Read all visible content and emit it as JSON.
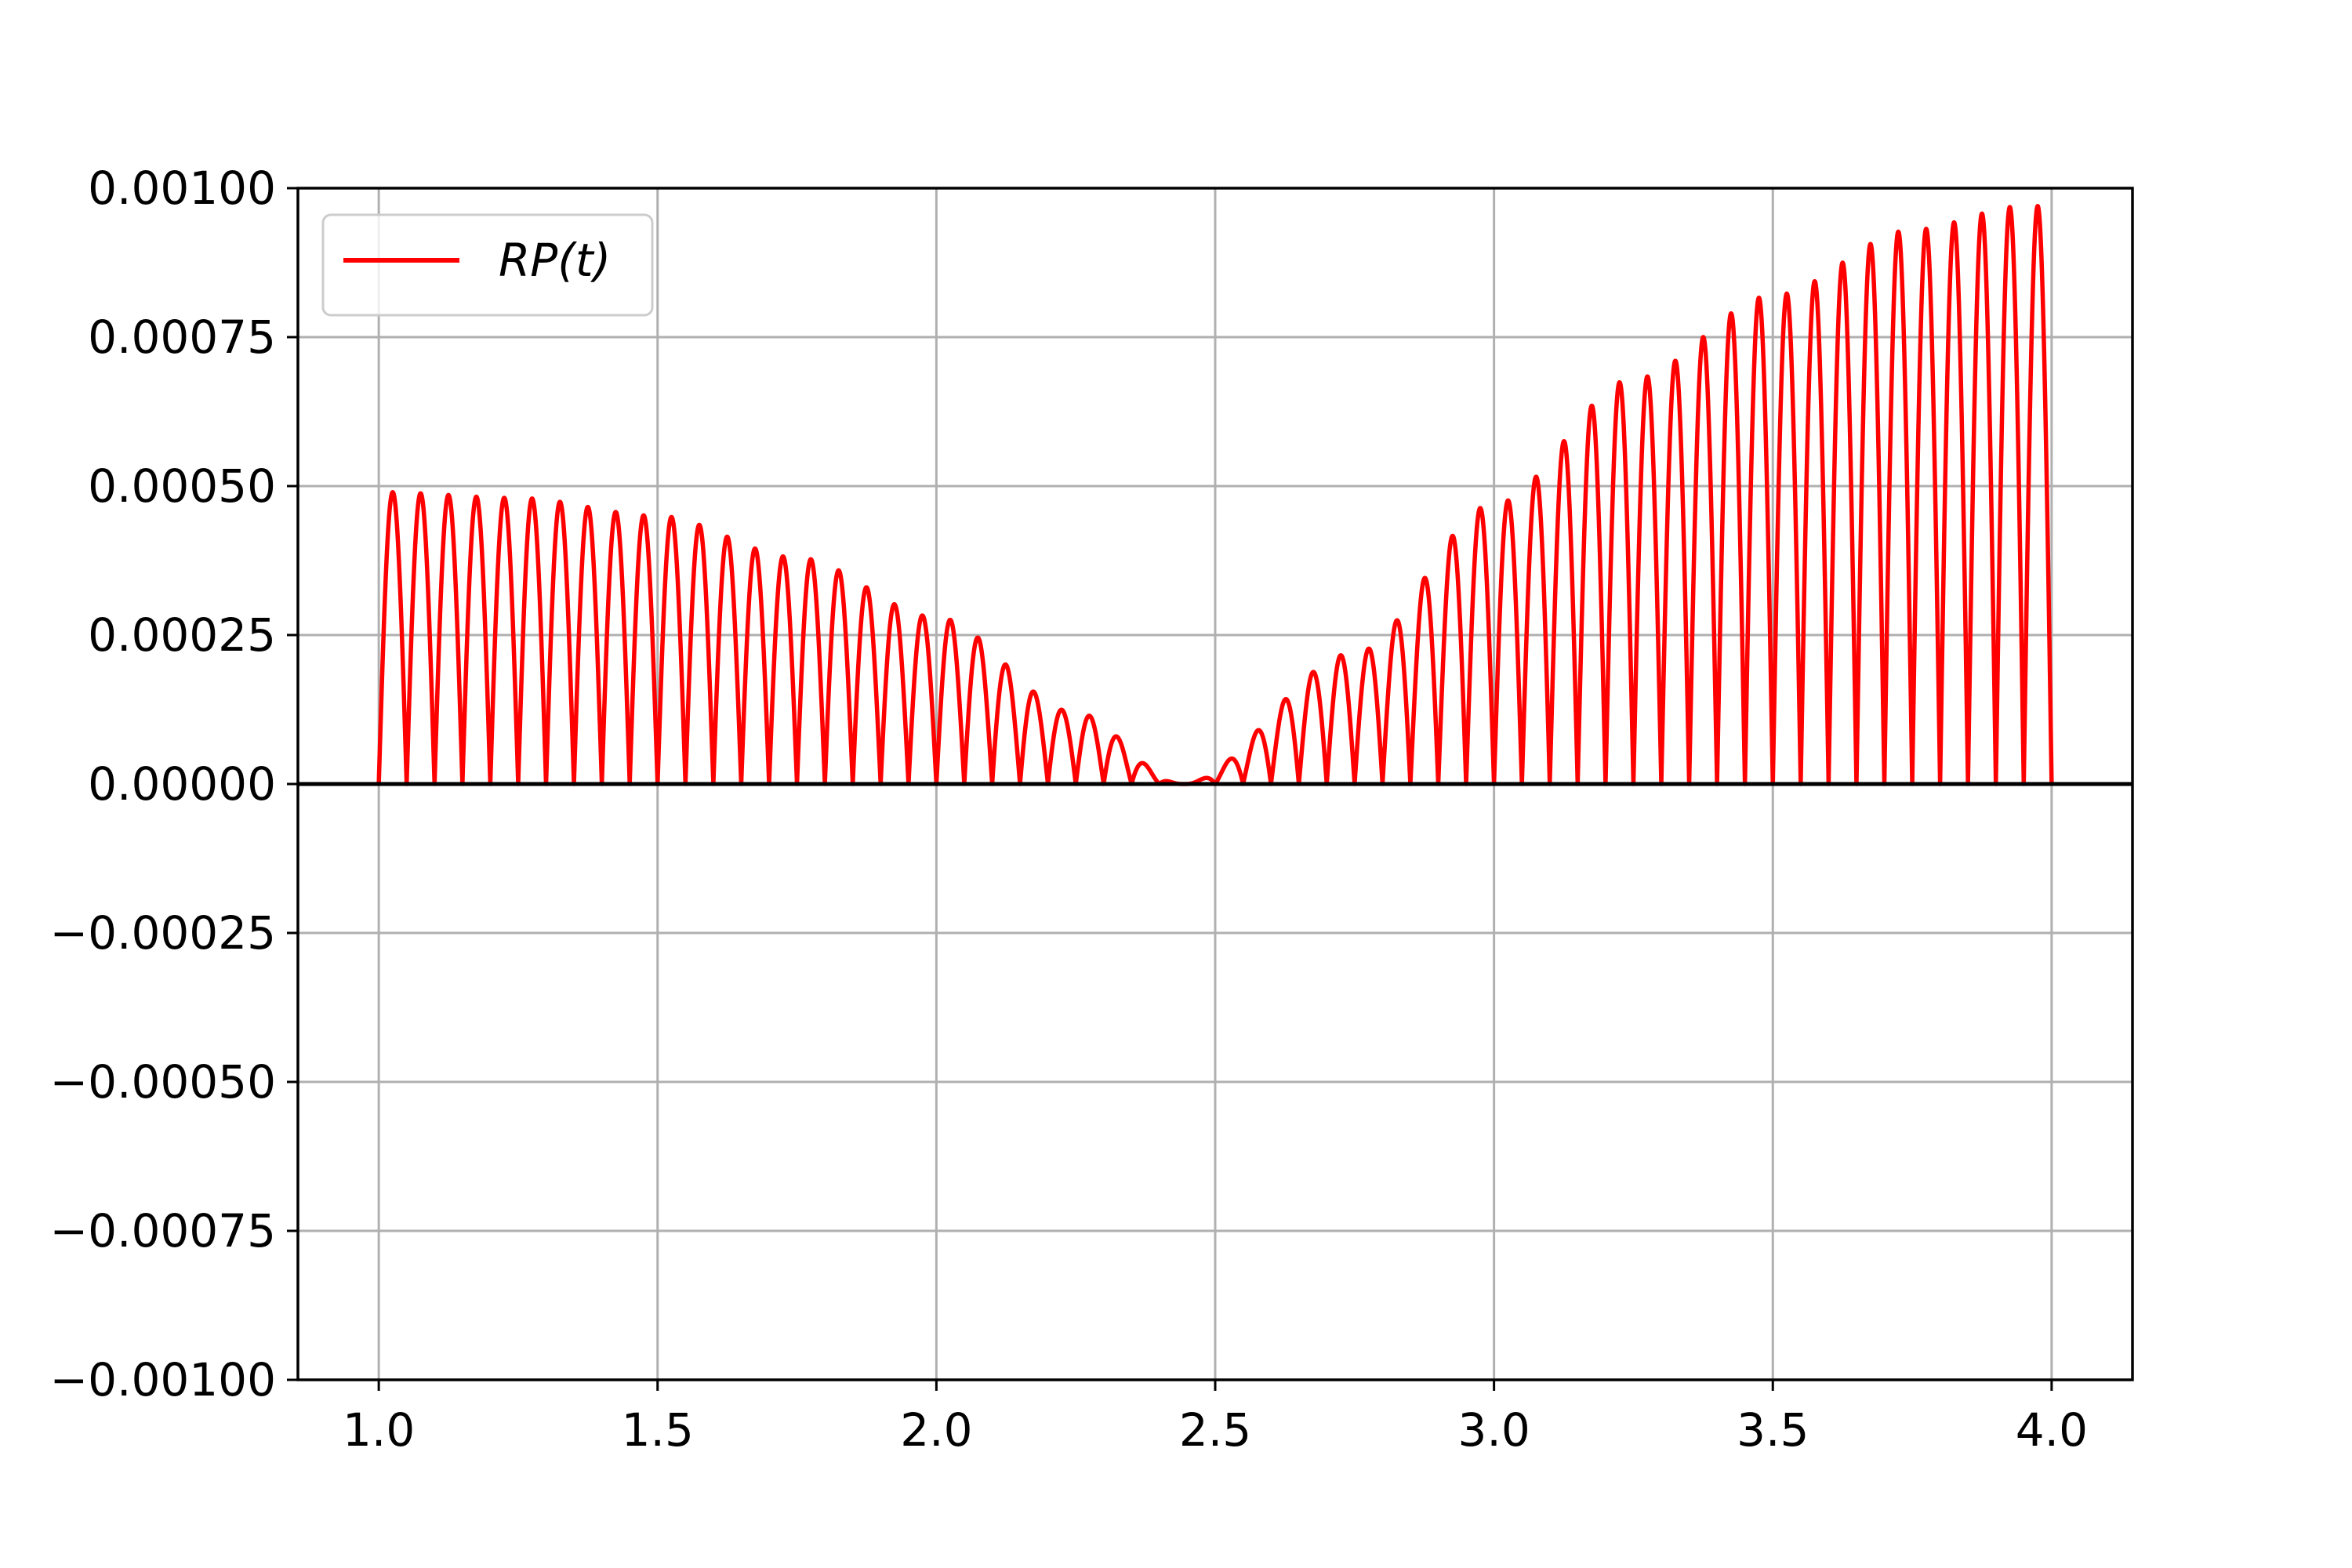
{
  "chart_data": {
    "type": "line",
    "title": "",
    "xlabel": "",
    "ylabel": "",
    "xlim": [
      0.855,
      4.145
    ],
    "ylim": [
      -0.001,
      0.001
    ],
    "grid": true,
    "legend": {
      "placement": "upper-left",
      "entries": [
        "RP(t)"
      ]
    },
    "zero_line": {
      "y": 0.0,
      "color": "#000000"
    },
    "x_ticks": [
      {
        "value": 1.0,
        "label": "1.0"
      },
      {
        "value": 1.5,
        "label": "1.5"
      },
      {
        "value": 2.0,
        "label": "2.0"
      },
      {
        "value": 2.5,
        "label": "2.5"
      },
      {
        "value": 3.0,
        "label": "3.0"
      },
      {
        "value": 3.5,
        "label": "3.5"
      },
      {
        "value": 4.0,
        "label": "4.0"
      }
    ],
    "y_ticks": [
      {
        "value": 0.001,
        "label": "0.00100"
      },
      {
        "value": 0.00075,
        "label": "0.00075"
      },
      {
        "value": 0.0005,
        "label": "0.00050"
      },
      {
        "value": 0.00025,
        "label": "0.00025"
      },
      {
        "value": 0.0,
        "label": "0.00000"
      },
      {
        "value": -0.00025,
        "label": "−0.00025"
      },
      {
        "value": -0.0005,
        "label": "−0.00050"
      },
      {
        "value": -0.00075,
        "label": "−0.00075"
      },
      {
        "value": -0.001,
        "label": "−0.00100"
      }
    ],
    "series": [
      {
        "name": "RP(t)",
        "color": "#ff0000",
        "x_range": [
          1.0,
          4.0
        ],
        "description_values": {
          "envelope_peak_points": [
            {
              "x": 1.0,
              "y": 0.00049
            },
            {
              "x": 1.25,
              "y": 0.00048
            },
            {
              "x": 1.5,
              "y": 0.00045
            },
            {
              "x": 1.75,
              "y": 0.00038
            },
            {
              "x": 2.0,
              "y": 0.00028
            },
            {
              "x": 2.25,
              "y": 0.00012
            },
            {
              "x": 2.44,
              "y": 0.0
            },
            {
              "x": 2.75,
              "y": 0.00022
            },
            {
              "x": 3.0,
              "y": 0.00047
            },
            {
              "x": 3.25,
              "y": 0.00068
            },
            {
              "x": 3.5,
              "y": 0.00082
            },
            {
              "x": 3.75,
              "y": 0.00093
            },
            {
              "x": 3.95,
              "y": 0.00097
            }
          ],
          "oscillation_period": 0.05
        }
      }
    ]
  }
}
